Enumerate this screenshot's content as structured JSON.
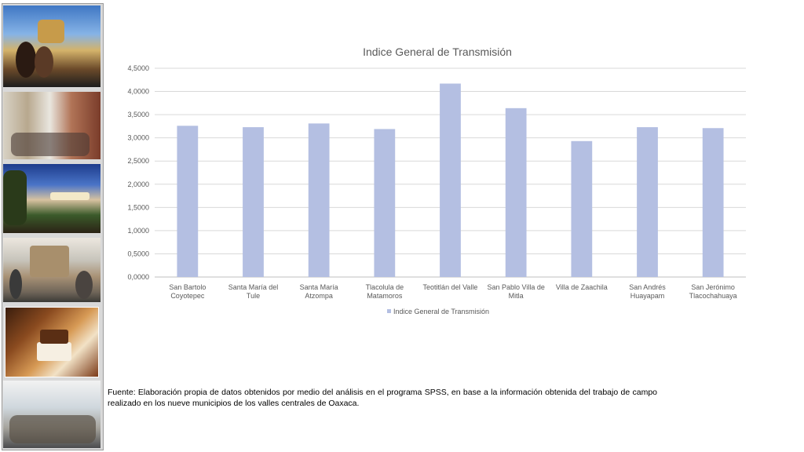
{
  "chart_data": {
    "type": "bar",
    "title": "Indice General de Transmisión",
    "categories": [
      [
        "San Bartolo",
        "Coyotepec"
      ],
      [
        "Santa María del",
        "Tule"
      ],
      [
        "Santa María",
        "Atzompa"
      ],
      [
        "Tlacolula de",
        "Matamoros"
      ],
      [
        "Teotitlán del Valle"
      ],
      [
        "San Pablo Villa de",
        "Mitla"
      ],
      [
        "Villa de Zaachila"
      ],
      [
        "San Andrés",
        "Huayapam"
      ],
      [
        "San Jerónimo",
        "Tlacochahuaya"
      ]
    ],
    "series": [
      {
        "name": "Indice General de Transmisión",
        "values": [
          3.26,
          3.23,
          3.31,
          3.19,
          4.17,
          3.64,
          2.93,
          3.23,
          3.21
        ]
      }
    ],
    "ylim": [
      0,
      4.5
    ],
    "yticks": [
      "0,0000",
      "0,5000",
      "1,0000",
      "1,5000",
      "2,0000",
      "2,5000",
      "3,0000",
      "3,5000",
      "4,0000",
      "4,5000"
    ],
    "grid": true,
    "legend": "bottom",
    "bar_color": "#b4bfe2"
  },
  "sidebar": {
    "photos": [
      "city-tourists-photo",
      "street-crowd-photo",
      "terrace-panorama-photo",
      "church-plaza-photo",
      "hotel-room-photo",
      "market-people-photo"
    ]
  },
  "source_note": "Fuente: Elaboración propia de datos obtenidos por medio del  análisis en el programa SPSS, en base a la información obtenida del trabajo de campo realizado en los nueve municipios de los valles centrales de Oaxaca."
}
